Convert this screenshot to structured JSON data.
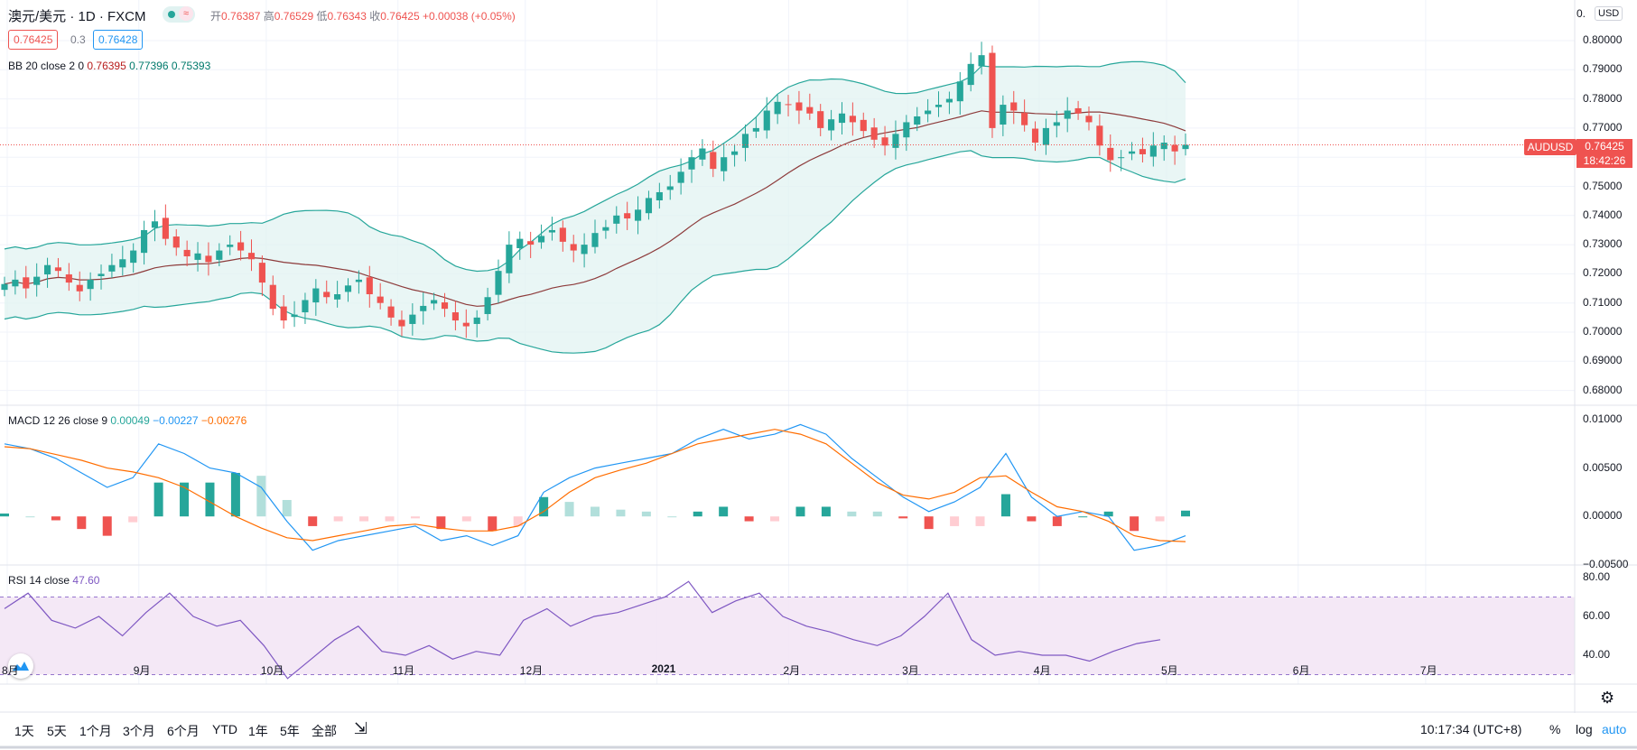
{
  "header": {
    "symbol": "澳元/美元 · 1D · FXCM",
    "open_label": "开",
    "open": "0.76387",
    "high_label": "高",
    "high": "0.76529",
    "low_label": "低",
    "low": "0.76343",
    "close_label": "收",
    "close": "0.76425",
    "change": "+0.00038 (+0.05%)",
    "sell_price": "0.76425",
    "spread": "0.3",
    "buy_price": "0.76428"
  },
  "indicators": {
    "bb": {
      "label": "BB 20 close 2 0",
      "v1": "0.76395",
      "v2": "0.77396",
      "v3": "0.75393"
    },
    "macd": {
      "label": "MACD 12 26 close 9",
      "v1": "0.00049",
      "v2": "−0.00227",
      "v3": "−0.00276"
    },
    "rsi": {
      "label": "RSI 14 close",
      "v1": "47.60"
    }
  },
  "price_axis": {
    "currency": "USD",
    "ticks": [
      "0.80000",
      "0.79000",
      "0.78000",
      "0.77000",
      "0.76000",
      "0.75000",
      "0.74000",
      "0.73000",
      "0.72000",
      "0.71000",
      "0.70000",
      "0.69000",
      "0.68000"
    ],
    "top_partial": "0.",
    "current_symbol": "AUDUSD",
    "current_price": "0.76425",
    "countdown": "18:42:26"
  },
  "macd_axis": {
    "ticks": [
      "0.01000",
      "0.00500",
      "0.00000",
      "−0.00500"
    ]
  },
  "rsi_axis": {
    "ticks": [
      "80.00",
      "60.00",
      "40.00"
    ]
  },
  "time_axis": {
    "labels": [
      "8月",
      "9月",
      "10月",
      "11月",
      "12月",
      "2021",
      "2月",
      "3月",
      "4月",
      "5月",
      "6月",
      "7月"
    ]
  },
  "bottom_bar": {
    "ranges": [
      "1天",
      "5天",
      "1个月",
      "3个月",
      "6个月",
      "YTD",
      "1年",
      "5年",
      "全部"
    ],
    "time": "10:17:34 (UTC+8)",
    "percent": "%",
    "log": "log",
    "auto": "auto"
  },
  "colors": {
    "up": "#26a69a",
    "down": "#ef5350",
    "bb_fill": "#e0f2f1",
    "macd": "#2196f3",
    "signal": "#ff6d00",
    "rsi": "#7e57c2"
  },
  "chart_data": [
    {
      "type": "candlestick",
      "title": "澳元/美元 1D FXCM",
      "overlay": "Bollinger Bands (20, 2)",
      "ylim": [
        0.675,
        0.805
      ],
      "x_range": [
        "2020-08-01",
        "2021-07-31"
      ],
      "last_close": 0.76425,
      "approx_closes": [
        0.7165,
        0.718,
        0.715,
        0.719,
        0.723,
        0.721,
        0.717,
        0.714,
        0.718,
        0.72,
        0.723,
        0.725,
        0.728,
        0.735,
        0.738,
        0.732,
        0.729,
        0.726,
        0.727,
        0.724,
        0.728,
        0.73,
        0.728,
        0.725,
        0.717,
        0.708,
        0.704,
        0.706,
        0.711,
        0.715,
        0.712,
        0.713,
        0.716,
        0.718,
        0.713,
        0.71,
        0.705,
        0.702,
        0.706,
        0.709,
        0.711,
        0.708,
        0.704,
        0.702,
        0.705,
        0.712,
        0.721,
        0.73,
        0.732,
        0.73,
        0.733,
        0.735,
        0.731,
        0.728,
        0.73,
        0.734,
        0.736,
        0.74,
        0.739,
        0.742,
        0.746,
        0.748,
        0.75,
        0.755,
        0.76,
        0.763,
        0.756,
        0.76,
        0.762,
        0.768,
        0.77,
        0.776,
        0.779,
        0.778,
        0.776,
        0.775,
        0.77,
        0.773,
        0.775,
        0.772,
        0.769,
        0.766,
        0.764,
        0.768,
        0.772,
        0.774,
        0.776,
        0.778,
        0.78,
        0.786,
        0.792,
        0.795,
        0.77,
        0.778,
        0.776,
        0.771,
        0.765,
        0.77,
        0.772,
        0.776,
        0.775,
        0.772,
        0.764,
        0.759,
        0.76,
        0.762,
        0.761,
        0.764,
        0.765,
        0.762,
        0.76425
      ]
    },
    {
      "type": "line",
      "title": "MACD 12 26 close 9",
      "ylim": [
        -0.006,
        0.0105
      ],
      "series": [
        {
          "name": "MACD",
          "approx_values": [
            0.0075,
            0.007,
            0.006,
            0.0045,
            0.003,
            0.004,
            0.0075,
            0.0065,
            0.005,
            0.0045,
            0.003,
            -0.0005,
            -0.0035,
            -0.0025,
            -0.002,
            -0.0015,
            -0.001,
            -0.0025,
            -0.002,
            -0.003,
            -0.002,
            0.0025,
            0.004,
            0.005,
            0.0055,
            0.006,
            0.0065,
            0.008,
            0.009,
            0.008,
            0.0085,
            0.0095,
            0.0085,
            0.006,
            0.004,
            0.002,
            0.0005,
            0.0015,
            0.003,
            0.0065,
            0.002,
            0.0,
            0.0005,
            0.0,
            -0.0035,
            -0.003,
            -0.002
          ]
        },
        {
          "name": "Signal",
          "approx_values": [
            0.0072,
            0.007,
            0.0064,
            0.0058,
            0.005,
            0.0046,
            0.004,
            0.003,
            0.0015,
            0.0,
            -0.0012,
            -0.0022,
            -0.0025,
            -0.002,
            -0.0015,
            -0.001,
            -0.0008,
            -0.0012,
            -0.0015,
            -0.0015,
            -0.001,
            0.0005,
            0.0025,
            0.004,
            0.0048,
            0.0055,
            0.0065,
            0.0075,
            0.008,
            0.0085,
            0.009,
            0.0085,
            0.0075,
            0.0055,
            0.0035,
            0.0022,
            0.0018,
            0.0025,
            0.004,
            0.0042,
            0.0025,
            0.001,
            0.0005,
            -0.0005,
            -0.002,
            -0.0025,
            -0.0026
          ]
        }
      ]
    },
    {
      "type": "line",
      "title": "RSI 14 close",
      "ylim": [
        25,
        82
      ],
      "bands": [
        30,
        70
      ],
      "series": [
        {
          "name": "RSI",
          "approx_values": [
            64,
            72,
            58,
            54,
            60,
            50,
            62,
            72,
            60,
            55,
            58,
            45,
            28,
            38,
            48,
            55,
            42,
            40,
            45,
            38,
            42,
            40,
            58,
            64,
            55,
            60,
            62,
            66,
            70,
            78,
            62,
            68,
            72,
            60,
            55,
            52,
            48,
            45,
            50,
            60,
            72,
            48,
            40,
            42,
            40,
            40,
            37,
            42,
            46,
            48
          ]
        }
      ]
    }
  ]
}
